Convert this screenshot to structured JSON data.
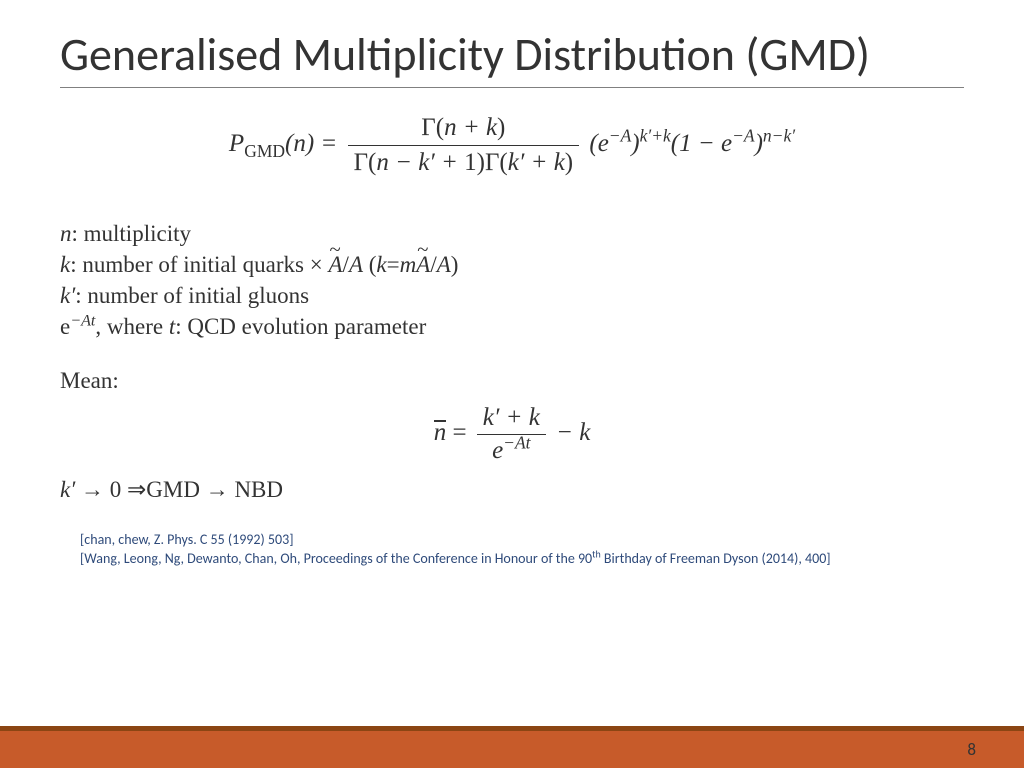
{
  "title": "Generalised Multiplicity Distribution (GMD)",
  "eq": {
    "lhs_P": "P",
    "lhs_sub": "GMD",
    "lhs_arg": "(n) =",
    "num": "Γ(n + k)",
    "den": "Γ(n − k′ + 1)Γ(k′ + k)",
    "t1a": "(e",
    "t1exp": "−A",
    "t1b": ")",
    "t1sup": "k′+k",
    "t2a": "(1 − e",
    "t2exp": "−A",
    "t2b": ")",
    "t2sup": "n−k′"
  },
  "defs": {
    "l1_a": "n",
    "l1_b": ": multiplicity",
    "l2_a": "k",
    "l2_b": ": number of initial quarks × ",
    "l2_Atilde": "A",
    "l2_c": "/",
    "l2_A": "A",
    "l2_d": " (",
    "l2_k": "k",
    "l2_e": "=",
    "l2_m": "m",
    "l2_Atilde2": "A",
    "l2_f": "/",
    "l2_A2": "A",
    "l2_g": ")",
    "l3_a": "k′",
    "l3_b": ": number of initial gluons",
    "l4_a": "e",
    "l4_exp": "−At",
    "l4_b": ", where ",
    "l4_t": "t",
    "l4_c": ": QCD evolution parameter"
  },
  "mean_label": "Mean:",
  "mean": {
    "nbar": "n",
    "eq": " = ",
    "num": "k′ + k",
    "den_a": "e",
    "den_exp": "−At",
    "tail": " − k"
  },
  "limit": {
    "a": "k′ → ",
    "zero": "0",
    "arrow": " ⇒",
    "b": "GMD → NBD"
  },
  "refs": {
    "r1": "[chan, chew, Z. Phys. C 55 (1992) 503]",
    "r2a": "[Wang, Leong, Ng, Dewanto, Chan, Oh, Proceedings of the Conference in Honour of the 90",
    "r2sup": "th",
    "r2b": " Birthday of Freeman Dyson (2014), 400]"
  },
  "page": "8",
  "colors": {
    "text": "#333333",
    "ref": "#2e4a7a",
    "bar_accent": "#8b4513",
    "bar_main": "#c75b2a"
  }
}
